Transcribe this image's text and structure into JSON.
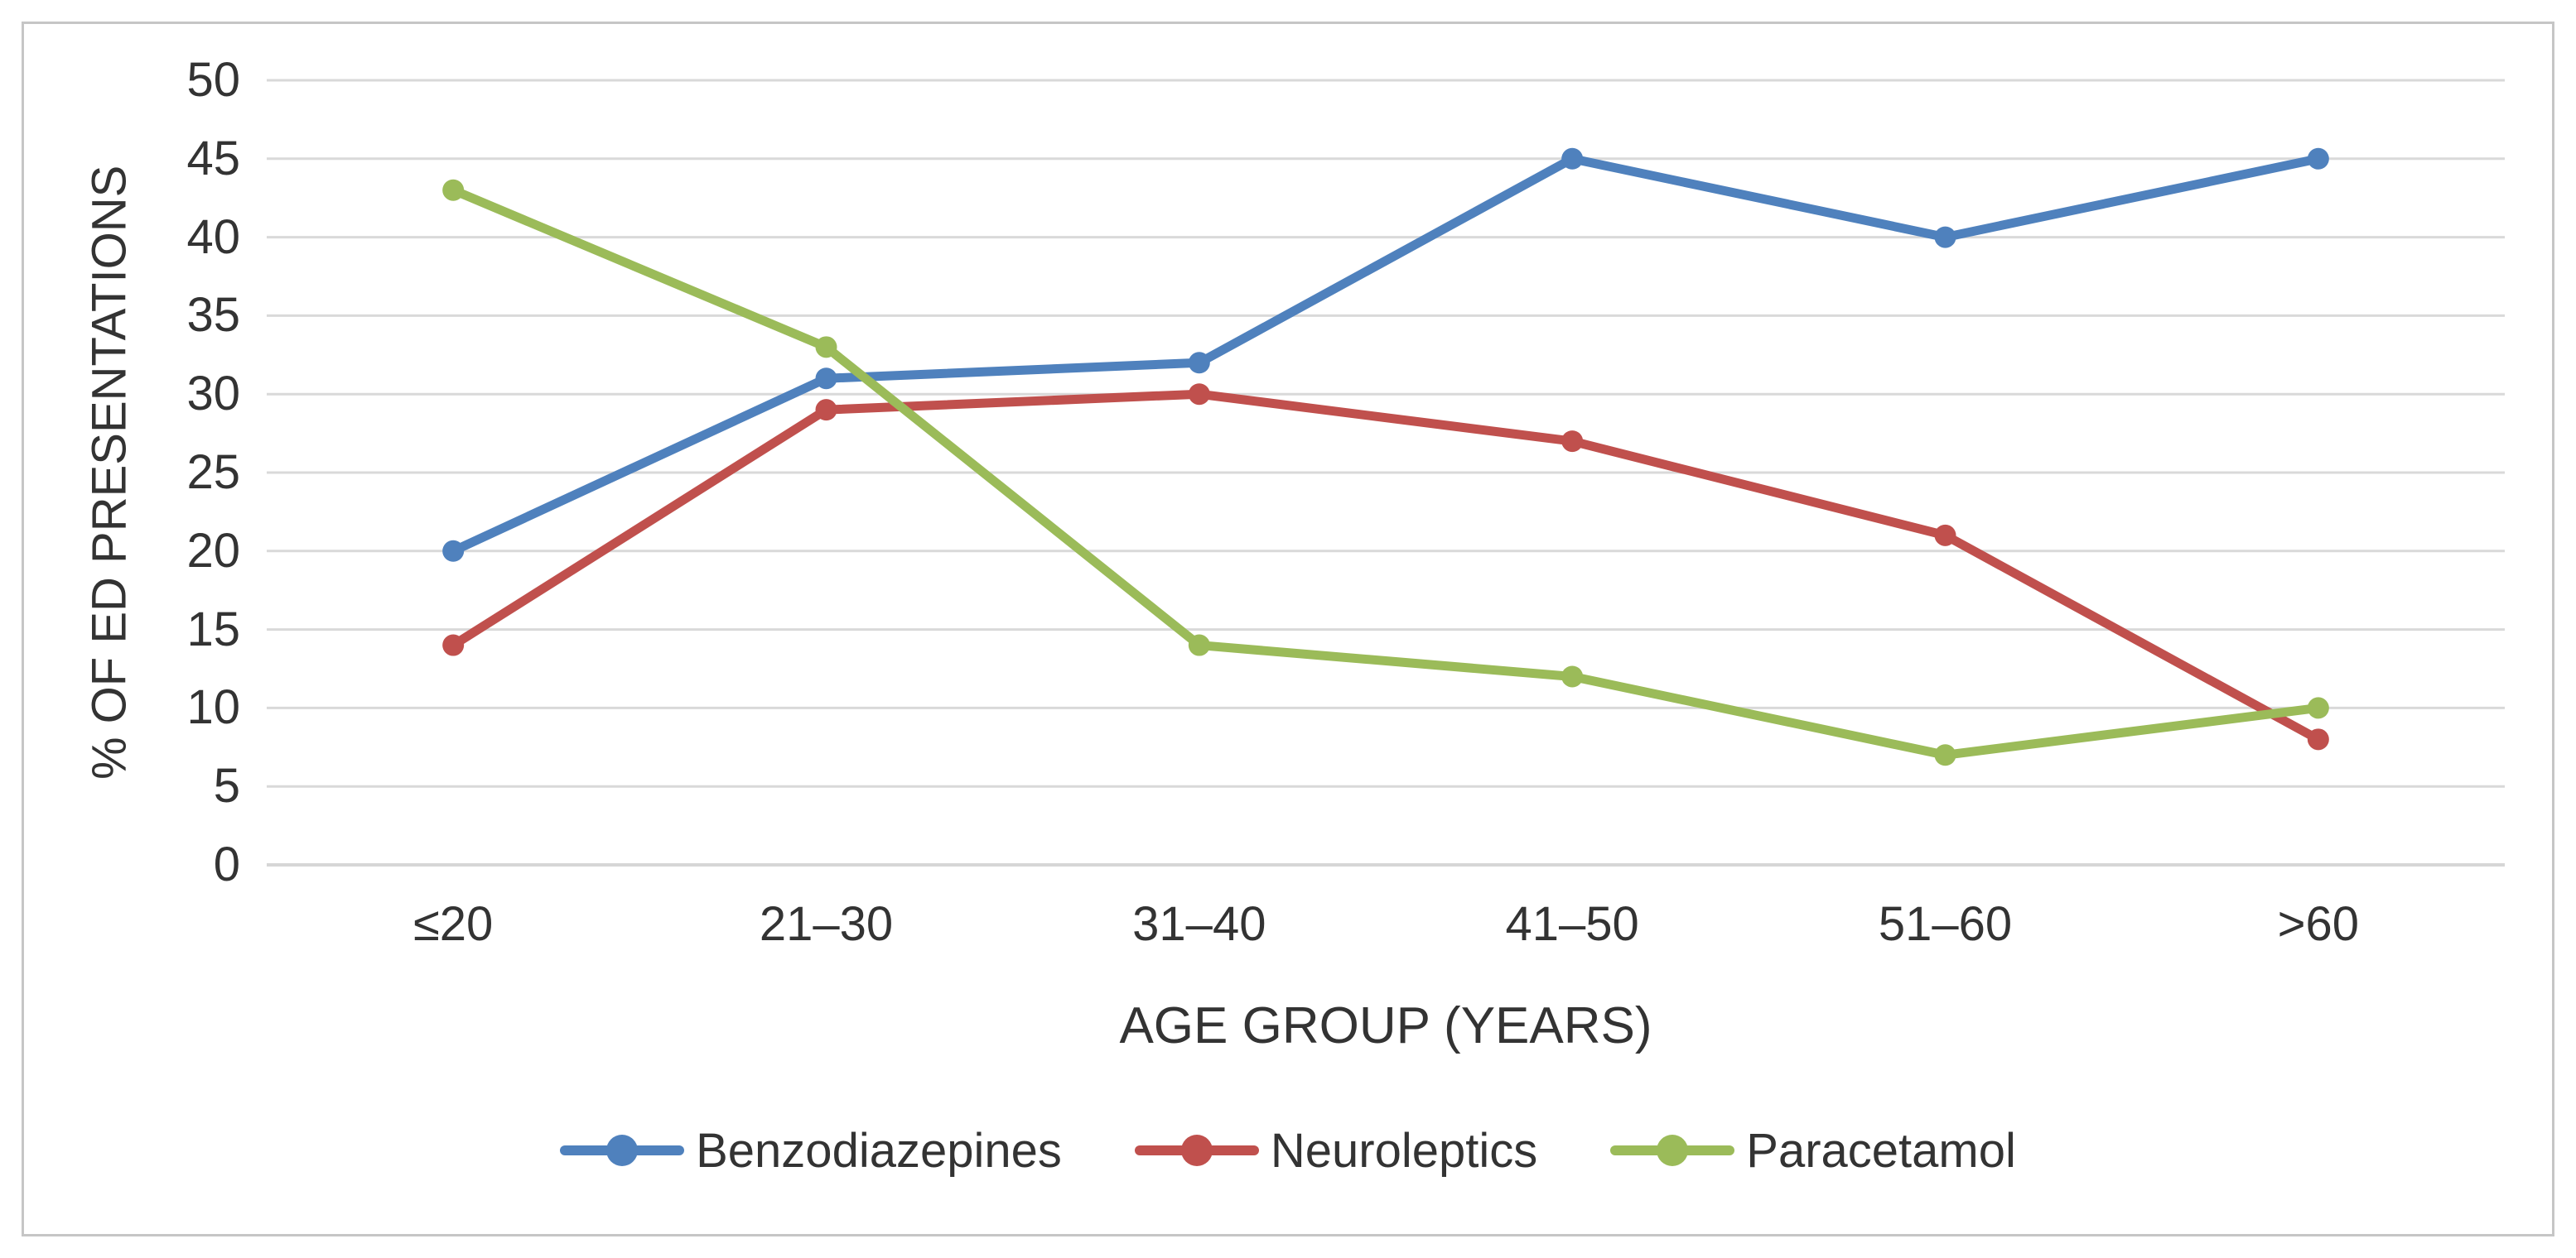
{
  "chart_data": {
    "type": "line",
    "title": "",
    "xlabel": "AGE GROUP (YEARS)",
    "ylabel": "% OF ED PRESENTATIONS",
    "categories": [
      "≤20",
      "21–30",
      "31–40",
      "41–50",
      "51–60",
      ">60"
    ],
    "y_axis": {
      "min": 0,
      "max": 50,
      "step": 5
    },
    "y_tick_labels": [
      "0",
      "5",
      "10",
      "15",
      "20",
      "25",
      "30",
      "35",
      "40",
      "45",
      "50"
    ],
    "grid": "horizontal",
    "legend_position": "bottom",
    "marker": "circle",
    "series": [
      {
        "name": "Benzodiazepines",
        "color": "#4F81BD",
        "values": [
          20,
          31,
          32,
          45,
          40,
          45
        ]
      },
      {
        "name": "Neuroleptics",
        "color": "#C0504D",
        "values": [
          14,
          29,
          30,
          27,
          21,
          8
        ]
      },
      {
        "name": "Paracetamol",
        "color": "#9BBB59",
        "values": [
          43,
          33,
          14,
          12,
          7,
          10
        ]
      }
    ],
    "colors": {
      "gridline": "#D9D9D9",
      "axis_line": "#D6D6D6",
      "figure_border": "#C6C6C6",
      "text": "#333333",
      "background": "#FFFFFF"
    }
  }
}
